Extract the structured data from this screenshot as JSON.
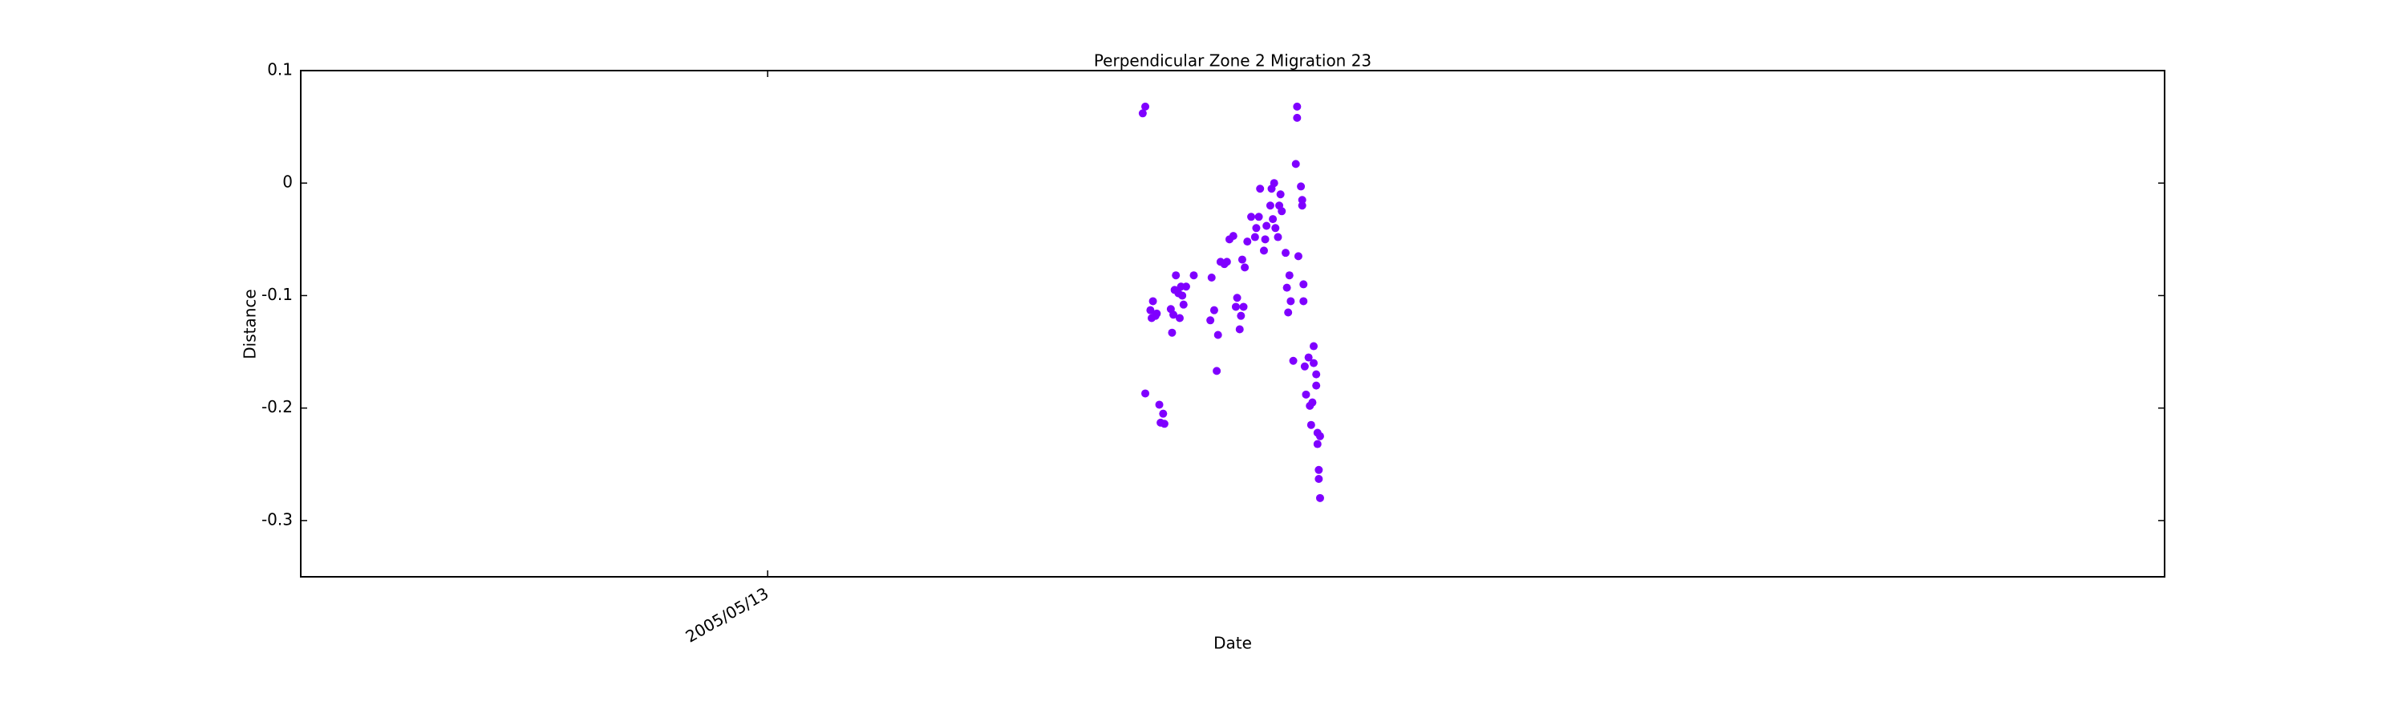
{
  "chart_data": {
    "type": "scatter",
    "title": "Perpendicular Zone 2 Migration 23",
    "xlabel": "Date",
    "ylabel": "Distance",
    "x": [
      "2006/03/03",
      "2006/03/05",
      "2006/03/05",
      "2006/03/09",
      "2006/03/10",
      "2006/03/11",
      "2006/03/13",
      "2006/03/14",
      "2006/03/16",
      "2006/03/17",
      "2006/03/19",
      "2006/03/20",
      "2006/03/25",
      "2006/03/26",
      "2006/03/27",
      "2006/03/28",
      "2006/03/29",
      "2006/03/31",
      "2006/04/01",
      "2006/04/02",
      "2006/04/03",
      "2006/04/04",
      "2006/04/06",
      "2006/04/12",
      "2006/04/25",
      "2006/04/26",
      "2006/04/28",
      "2006/04/30",
      "2006/05/01",
      "2006/05/03",
      "2006/05/06",
      "2006/05/08",
      "2006/05/10",
      "2006/05/13",
      "2006/05/15",
      "2006/05/16",
      "2006/05/18",
      "2006/05/19",
      "2006/05/20",
      "2006/05/21",
      "2006/05/22",
      "2006/05/24",
      "2006/05/27",
      "2006/05/30",
      "2006/05/31",
      "2006/06/02",
      "2006/06/03",
      "2006/06/06",
      "2006/06/07",
      "2006/06/08",
      "2006/06/11",
      "2006/06/12",
      "2006/06/13",
      "2006/06/14",
      "2006/06/15",
      "2006/06/17",
      "2006/06/18",
      "2006/06/19",
      "2006/06/20",
      "2006/06/23",
      "2006/06/24",
      "2006/06/25",
      "2006/06/26",
      "2006/06/27",
      "2006/06/29",
      "2006/07/01",
      "2006/07/02",
      "2006/07/02",
      "2006/07/03",
      "2006/07/05",
      "2006/07/06",
      "2006/07/06",
      "2006/07/07",
      "2006/07/07",
      "2006/07/08",
      "2006/07/09",
      "2006/07/11",
      "2006/07/12",
      "2006/07/13",
      "2006/07/14",
      "2006/07/15",
      "2006/07/15",
      "2006/07/17",
      "2006/07/17",
      "2006/07/18",
      "2006/07/18",
      "2006/07/19",
      "2006/07/19",
      "2006/07/20",
      "2006/07/20"
    ],
    "series": [
      {
        "color": "#7f00ff",
        "values": [
          0.062,
          0.068,
          -0.187,
          -0.113,
          -0.12,
          -0.105,
          -0.118,
          -0.116,
          -0.197,
          -0.213,
          -0.205,
          -0.214,
          -0.112,
          -0.133,
          -0.117,
          -0.095,
          -0.082,
          -0.098,
          -0.12,
          -0.092,
          -0.1,
          -0.108,
          -0.092,
          -0.082,
          -0.122,
          -0.084,
          -0.113,
          -0.167,
          -0.135,
          -0.07,
          -0.072,
          -0.07,
          -0.05,
          -0.047,
          -0.11,
          -0.102,
          -0.13,
          -0.118,
          -0.068,
          -0.11,
          -0.075,
          -0.052,
          -0.03,
          -0.048,
          -0.04,
          -0.03,
          -0.005,
          -0.06,
          -0.05,
          -0.038,
          -0.02,
          -0.005,
          -0.032,
          0,
          -0.04,
          -0.048,
          -0.02,
          -0.01,
          -0.025,
          -0.062,
          -0.093,
          -0.115,
          -0.082,
          -0.105,
          -0.158,
          0.017,
          0.068,
          0.058,
          -0.065,
          -0.003,
          -0.02,
          -0.015,
          -0.09,
          -0.105,
          -0.163,
          -0.188,
          -0.155,
          -0.198,
          -0.215,
          -0.195,
          -0.145,
          -0.16,
          -0.17,
          -0.18,
          -0.222,
          -0.232,
          -0.255,
          -0.263,
          -0.225,
          -0.28
        ]
      }
    ],
    "xlim": [
      "2004/05/12",
      "2008/05/12"
    ],
    "xticks": [
      "2005/05/13"
    ],
    "ylim": [
      -0.35,
      0.1
    ],
    "yticks": [
      -0.3,
      -0.2,
      -0.1,
      0.0,
      0.1
    ]
  }
}
